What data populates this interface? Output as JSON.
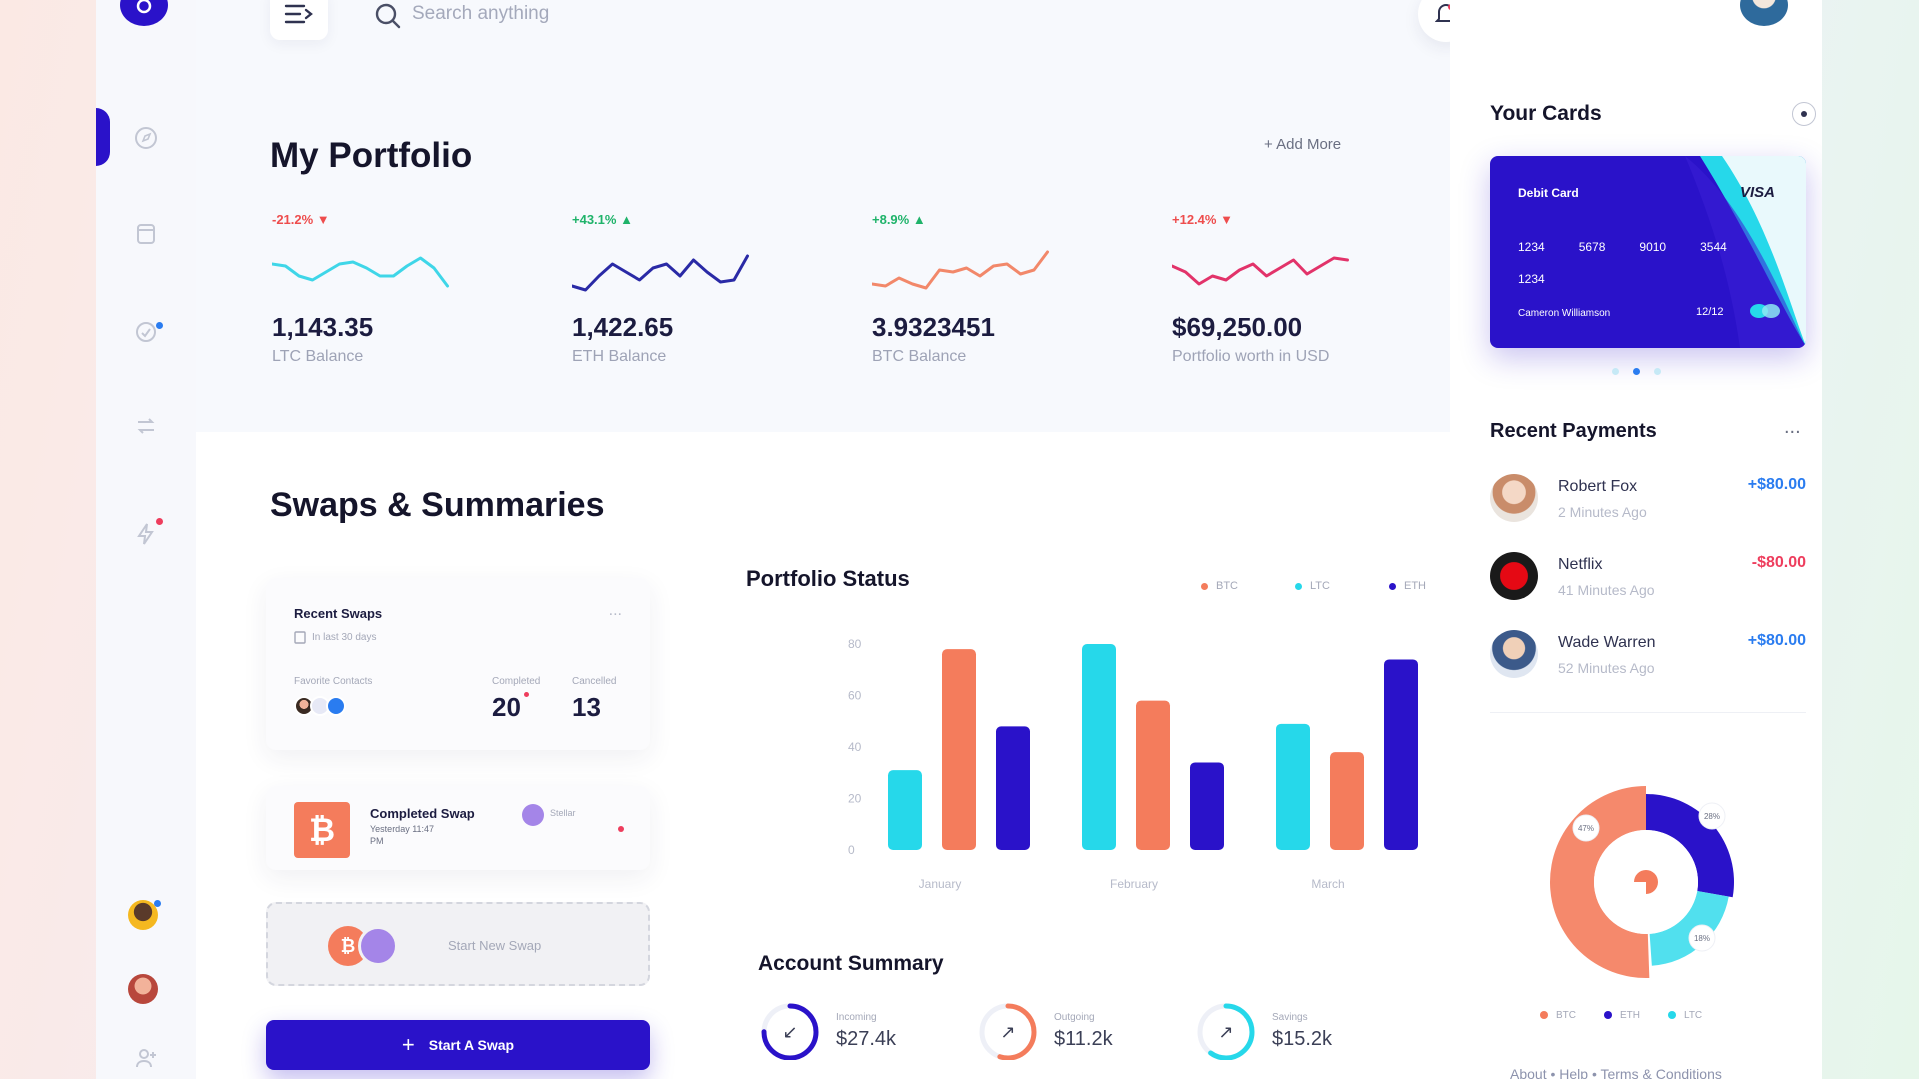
{
  "search": {
    "placeholder": "Search anything"
  },
  "portfolio": {
    "title": "My Portfolio",
    "add_more": "+ Add More",
    "assets": [
      {
        "change": "-21.2% ▼",
        "value": "1,143.35",
        "label": "LTC Balance",
        "color": "#3fd6e8",
        "change_color": "#ee4d4d"
      },
      {
        "change": "+43.1% ▲",
        "value": "1,422.65",
        "label": "ETH Balance",
        "color": "#2a2aa6",
        "change_color": "#1fb36a"
      },
      {
        "change": "+8.9% ▲",
        "value": "3.9323451",
        "label": "BTC Balance",
        "color": "#f2886a",
        "change_color": "#1fb36a"
      },
      {
        "change": "+12.4% ▼",
        "value": "$69,250.00",
        "label": "Portfolio worth in USD",
        "color": "#e2336a",
        "change_color": "#ee4d4d"
      }
    ]
  },
  "swaps": {
    "title": "Swaps & Summaries",
    "recent": {
      "title": "Recent Swaps",
      "period": "In last 30 days",
      "more": "...",
      "favorite_label": "Favorite Contacts",
      "completed_label": "Completed",
      "completed_value": "20",
      "cancelled_label": "Cancelled",
      "cancelled_value": "13"
    },
    "completed_swap": {
      "title": "Completed Swap",
      "sub": "Yesterday 11:47",
      "sub2": "PM",
      "to": "Stellar"
    },
    "new_swap": "Start New Swap",
    "start_button": "Start A Swap"
  },
  "chart_data": {
    "type": "bar",
    "title": "Portfolio Status",
    "categories": [
      "January",
      "February",
      "March"
    ],
    "ylim": [
      0,
      80
    ],
    "yticks": [
      "80",
      "60",
      "40",
      "20",
      "0"
    ],
    "series": [
      {
        "name": "BTC",
        "color": "#f47c5c",
        "values": [
          78,
          58,
          38
        ]
      },
      {
        "name": "LTC",
        "color": "#26d8ea",
        "values": [
          31,
          83,
          49
        ]
      },
      {
        "name": "ETH",
        "color": "#2a12c9",
        "values": [
          48,
          34,
          74
        ]
      }
    ],
    "legend": [
      "BTC",
      "LTC",
      "ETH"
    ],
    "bar_order": [
      "LTC",
      "BTC",
      "ETH"
    ]
  },
  "account_summary": {
    "title": "Account Summary",
    "items": [
      {
        "label": "Incoming",
        "value": "$27.4k",
        "color": "#2a12c9",
        "arrow": "↙"
      },
      {
        "label": "Outgoing",
        "value": "$11.2k",
        "color": "#f47c5c",
        "arrow": "↗"
      },
      {
        "label": "Savings",
        "value": "$15.2k",
        "color": "#26d8ea",
        "arrow": "↗"
      }
    ]
  },
  "cards": {
    "title": "Your Cards",
    "card_type": "Debit Card",
    "brand": "VISA",
    "number": [
      "1234",
      "5678",
      "9010",
      "3544"
    ],
    "number_extra": "1234",
    "holder": "Cameron Williamson",
    "expiry": "12/12"
  },
  "payments": {
    "title": "Recent Payments",
    "more": "...",
    "items": [
      {
        "name": "Robert Fox",
        "time": "2 Minutes Ago",
        "amount": "+$80.00",
        "color": "#2a7cf0"
      },
      {
        "name": "Netflix",
        "time": "41 Minutes Ago",
        "amount": "-$80.00",
        "color": "#ee3d5d"
      },
      {
        "name": "Wade Warren",
        "time": "52 Minutes Ago",
        "amount": "+$80.00",
        "color": "#2a7cf0"
      }
    ]
  },
  "donut": {
    "labels": [
      "47%",
      "28%",
      "18%"
    ],
    "legend": [
      "BTC",
      "ETH",
      "LTC"
    ]
  },
  "footer": {
    "links": "About • Help • Terms & Conditions"
  },
  "colors": {
    "accent": "#2a12c9",
    "orange": "#f47c5c",
    "cyan": "#26d8ea"
  }
}
